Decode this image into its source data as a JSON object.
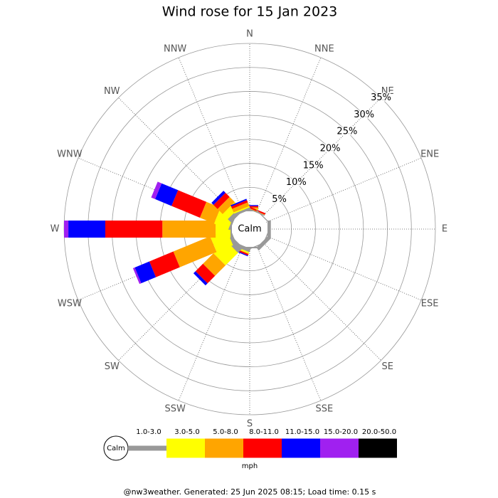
{
  "chart_data": {
    "type": "windrose",
    "title": "Wind rose for 15 Jan 2023",
    "categories": [
      "N",
      "NNE",
      "NE",
      "ENE",
      "E",
      "ESE",
      "SE",
      "SSE",
      "S",
      "SSW",
      "SW",
      "WSW",
      "W",
      "WNW",
      "NW",
      "NNW"
    ],
    "series": [
      {
        "name": "1.0-3.0",
        "color": "#999999",
        "values": [
          0.3,
          0.2,
          0.2,
          0,
          0.7,
          0.2,
          0.8,
          0.2,
          0.3,
          0.8,
          1.5,
          0.8,
          0.3,
          0.4,
          1.0,
          0.5
        ]
      },
      {
        "name": "3.0-5.0",
        "color": "#ffff00",
        "values": [
          0.2,
          0,
          0,
          0,
          0,
          0,
          0,
          0,
          0,
          0.3,
          3.7,
          3.7,
          3.1,
          3.2,
          1.5,
          0.3
        ]
      },
      {
        "name": "5.0-8.0",
        "color": "#ffa500",
        "values": [
          0.3,
          0.1,
          0,
          0,
          0,
          0,
          0,
          0,
          0,
          0.1,
          3.1,
          8.3,
          11.1,
          3.2,
          1.5,
          0.8
        ]
      },
      {
        "name": "8.0-11.0",
        "color": "#ff0000",
        "values": [
          0.3,
          0.3,
          0,
          0,
          0,
          0,
          0,
          0,
          0,
          0.3,
          2.2,
          5.4,
          11.9,
          6.4,
          1.2,
          0.5
        ]
      },
      {
        "name": "11.0-15.0",
        "color": "#0000ff",
        "values": [
          0.2,
          0,
          0,
          0,
          0,
          0,
          0,
          0,
          0,
          0.2,
          0.6,
          3.3,
          7.7,
          3.7,
          0.6,
          0.3
        ]
      },
      {
        "name": "15.0-20.0",
        "color": "#a020f0",
        "values": [
          0,
          0,
          0,
          0,
          0,
          0,
          0,
          0,
          0,
          0,
          0,
          0.4,
          0.9,
          0.9,
          0,
          0
        ]
      },
      {
        "name": "20.0-50.0",
        "color": "#000000",
        "values": [
          0,
          0,
          0,
          0,
          0,
          0,
          0,
          0,
          0,
          0,
          0,
          0,
          0,
          0,
          0,
          0
        ]
      }
    ],
    "rlim": [
      0,
      35
    ],
    "rticks": [
      {
        "value": 5,
        "label": "5%"
      },
      {
        "value": 10,
        "label": "10%"
      },
      {
        "value": 15,
        "label": "15%"
      },
      {
        "value": 20,
        "label": "20%"
      },
      {
        "value": 25,
        "label": "25%"
      },
      {
        "value": 30,
        "label": "30%"
      },
      {
        "value": 35,
        "label": "35%"
      }
    ],
    "calm_label": "Calm",
    "unit": "mph",
    "footer": "@nw3weather. Generated: 25 Jun 2025 08:15; Load time: 0.15 s"
  }
}
